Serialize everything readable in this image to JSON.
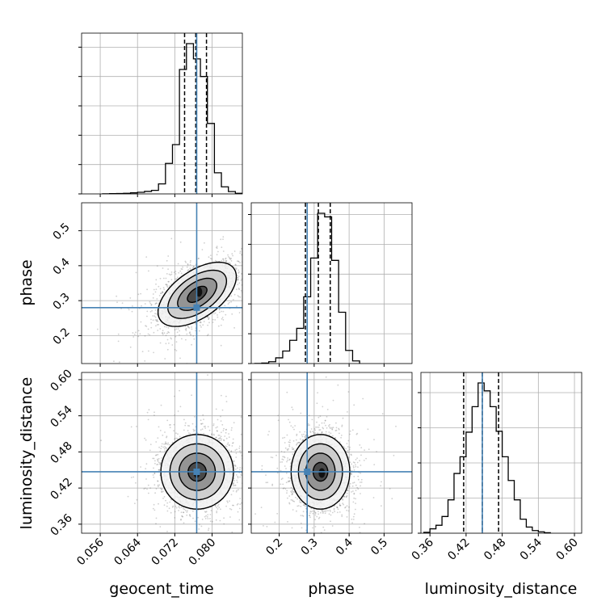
{
  "chart_data": {
    "type": "corner",
    "parameters": [
      {
        "name": "geocent_time",
        "label": "geocent_time",
        "range": [
          0.052,
          0.0865
        ],
        "ticks": [
          0.056,
          0.064,
          0.072,
          0.08
        ],
        "tick_labels": [
          "0.056",
          "0.064",
          "0.072",
          "0.080"
        ],
        "truth": 0.0767
      },
      {
        "name": "phase",
        "label": "phase",
        "range": [
          0.12,
          0.58
        ],
        "ticks": [
          0.2,
          0.3,
          0.4,
          0.5
        ],
        "tick_labels": [
          "0.2",
          "0.3",
          "0.4",
          "0.5"
        ],
        "truth": 0.28
      },
      {
        "name": "luminosity_distance",
        "label": "luminosity_distance",
        "range": [
          0.345,
          0.612
        ],
        "ticks": [
          0.36,
          0.42,
          0.48,
          0.54,
          0.6
        ],
        "tick_labels": [
          "0.36",
          "0.42",
          "0.48",
          "0.54",
          "0.60"
        ],
        "truth": 0.447
      }
    ],
    "truth_color": "#4682b4",
    "histograms": [
      {
        "param": "geocent_time",
        "bin_edges": [
          0.0565,
          0.058,
          0.0595,
          0.061,
          0.0625,
          0.064,
          0.0655,
          0.067,
          0.0685,
          0.07,
          0.0715,
          0.073,
          0.0745,
          0.076,
          0.0775,
          0.079,
          0.0805,
          0.082,
          0.0835,
          0.085,
          0.0865
        ],
        "counts": [
          1,
          2,
          3,
          5,
          9,
          14,
          21,
          30,
          85,
          260,
          420,
          1060,
          1280,
          1150,
          1000,
          600,
          180,
          60,
          20,
          5
        ],
        "quantiles": [
          0.0741,
          0.0765,
          0.0788
        ]
      },
      {
        "param": "phase",
        "bin_edges": [
          0.13,
          0.15,
          0.17,
          0.19,
          0.21,
          0.23,
          0.25,
          0.27,
          0.29,
          0.31,
          0.33,
          0.35,
          0.37,
          0.39,
          0.41,
          0.43
        ],
        "counts": [
          1,
          4,
          15,
          48,
          105,
          195,
          295,
          560,
          885,
          1260,
          1230,
          865,
          430,
          110,
          22
        ],
        "quantiles": [
          0.275,
          0.312,
          0.346
        ]
      },
      {
        "param": "luminosity_distance",
        "bin_edges": [
          0.35,
          0.36,
          0.37,
          0.38,
          0.39,
          0.4,
          0.41,
          0.42,
          0.43,
          0.44,
          0.45,
          0.46,
          0.47,
          0.48,
          0.49,
          0.5,
          0.51,
          0.52,
          0.53,
          0.54,
          0.55,
          0.56
        ],
        "counts": [
          5,
          25,
          45,
          95,
          190,
          340,
          435,
          575,
          720,
          855,
          810,
          720,
          580,
          435,
          300,
          190,
          80,
          35,
          15,
          8,
          3
        ],
        "quantiles": [
          0.416,
          0.447,
          0.474
        ]
      }
    ],
    "pairs": [
      {
        "x": "geocent_time",
        "y": "phase",
        "center": [
          0.0768,
          0.318
        ],
        "sigma": [
          0.0042,
          0.046
        ],
        "rho": 0.55,
        "density_peak": [
          0.0772,
          0.325
        ],
        "contour_levels": [
          0.5,
          1.0,
          1.5,
          2.0
        ]
      },
      {
        "x": "geocent_time",
        "y": "luminosity_distance",
        "center": [
          0.0768,
          0.447
        ],
        "sigma": [
          0.0039,
          0.031
        ],
        "rho": 0.0,
        "density_peak": [
          0.0767,
          0.445
        ],
        "contour_levels": [
          0.5,
          1.0,
          1.5,
          2.0
        ]
      },
      {
        "x": "phase",
        "y": "luminosity_distance",
        "center": [
          0.318,
          0.447
        ],
        "sigma": [
          0.042,
          0.031
        ],
        "rho": 0.0,
        "density_peak": [
          0.322,
          0.445
        ],
        "contour_levels": [
          0.5,
          1.0,
          1.5,
          2.0
        ]
      }
    ],
    "grid": true
  }
}
